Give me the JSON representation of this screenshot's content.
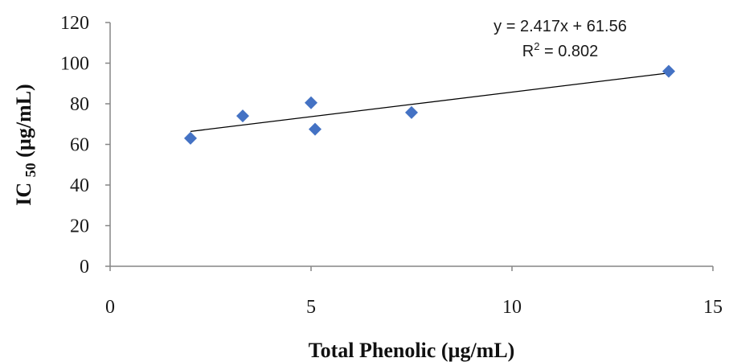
{
  "chart_data": {
    "type": "scatter",
    "x": [
      2.0,
      3.3,
      5.0,
      5.1,
      7.5,
      13.9
    ],
    "y": [
      63.0,
      74.0,
      80.5,
      67.5,
      75.7,
      96.0
    ],
    "xlabel": "Total Phenolic (µg/mL)",
    "ylabel": "IC 50 (µg/mL)",
    "ylabel_parts": {
      "main": "IC ",
      "subscript": "50",
      "unit": " (µg/mL)"
    },
    "xlim": [
      0,
      15
    ],
    "ylim": [
      0,
      120
    ],
    "xticks": [
      0,
      5,
      10,
      15
    ],
    "yticks": [
      0,
      20,
      40,
      60,
      80,
      100,
      120
    ],
    "grid": false,
    "marker": "diamond",
    "marker_color": "#4472C4",
    "trendline": {
      "slope": 2.417,
      "intercept": 61.56,
      "x_range": [
        2.0,
        13.9
      ],
      "color": "#000000",
      "equation": "y = 2.417x + 61.56",
      "r2_label": "R",
      "r2_sup": "2",
      "r2_value": " = 0.802"
    }
  }
}
